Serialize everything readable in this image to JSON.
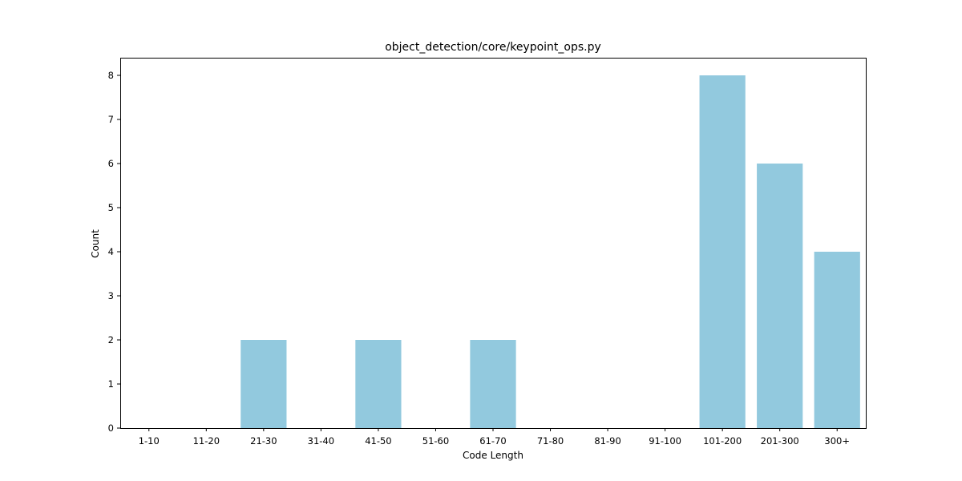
{
  "chart_data": {
    "type": "bar",
    "title": "object_detection/core/keypoint_ops.py",
    "xlabel": "Code Length",
    "ylabel": "Count",
    "categories": [
      "1-10",
      "11-20",
      "21-30",
      "31-40",
      "41-50",
      "51-60",
      "61-70",
      "71-80",
      "81-90",
      "91-100",
      "101-200",
      "201-300",
      "300+"
    ],
    "values": [
      0,
      0,
      2,
      0,
      2,
      0,
      2,
      0,
      0,
      0,
      8,
      6,
      4
    ],
    "ylim": [
      0,
      8.4
    ],
    "yticks": [
      0,
      1,
      2,
      3,
      4,
      5,
      6,
      7,
      8
    ],
    "bar_color": "#92c9de",
    "grid": false,
    "legend": "none"
  }
}
